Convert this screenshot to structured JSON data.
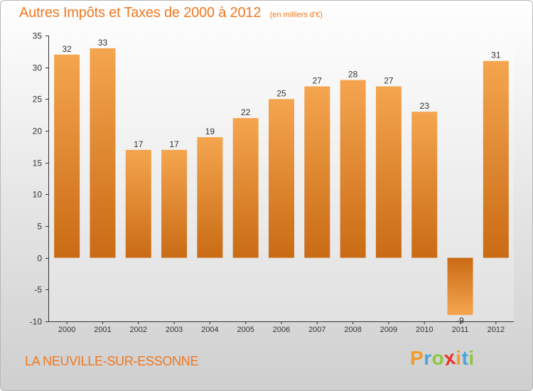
{
  "header": {
    "title": "Autres Impôts et Taxes de 2000 à 2012",
    "unit": "(en milliers d'€)"
  },
  "footer": {
    "commune": "LA NEUVILLE-SUR-ESSONNE",
    "logo": [
      "P",
      "r",
      "o",
      "x",
      "i",
      "t",
      "i"
    ],
    "logo_colors": [
      "#f29a2e",
      "#4aa6d8",
      "#8cc63f",
      "#e8322c",
      "#f29a2e",
      "#4aa6d8",
      "#8cc63f"
    ]
  },
  "colors": {
    "title": "#f07820",
    "bar_light": "#f5a54f",
    "bar_dark": "#c96b14",
    "axis": "#333333"
  },
  "chart_data": {
    "type": "bar",
    "title": "Autres Impôts et Taxes de 2000 à 2012",
    "subtitle": "(en milliers d'€)",
    "categories": [
      "2000",
      "2001",
      "2002",
      "2003",
      "2004",
      "2005",
      "2006",
      "2007",
      "2008",
      "2009",
      "2010",
      "2011",
      "2012"
    ],
    "values": [
      32,
      33,
      17,
      17,
      19,
      22,
      25,
      27,
      28,
      27,
      23,
      -9,
      31
    ],
    "ylim": [
      -10,
      35
    ],
    "yticks": [
      -10,
      -5,
      0,
      5,
      10,
      15,
      20,
      25,
      30,
      35
    ],
    "grid": false,
    "legend": "none"
  }
}
